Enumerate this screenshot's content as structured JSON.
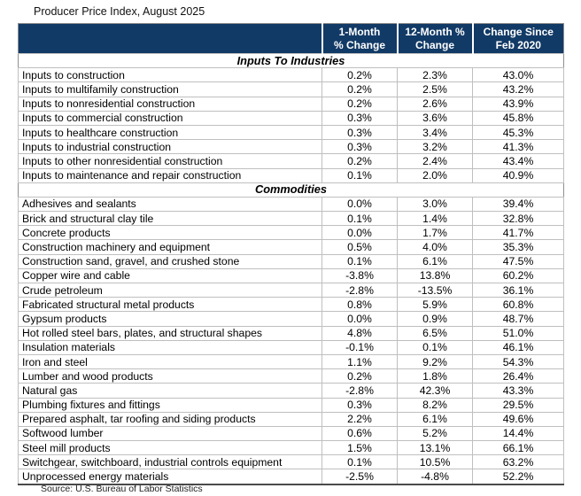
{
  "page": {
    "title": "Producer Price Index, August 2025",
    "source": "Source: U.S. Bureau of Labor Statistics"
  },
  "colors": {
    "header_bg": "#123A66",
    "header_text": "#FFFFFF",
    "grid": "#BFBFBF",
    "outer_border": "#8F8F8F",
    "text": "#000000"
  },
  "table_headers": [
    {
      "l1": "1-Month",
      "l2": "% Change"
    },
    {
      "l1": "12-Month %",
      "l2": "Change"
    },
    {
      "l1": "Change Since",
      "l2": "Feb 2020"
    }
  ],
  "chart_data": {
    "type": "table",
    "title": "Producer Price Index, August 2025",
    "columns": [
      "",
      "1-Month % Change",
      "12-Month % Change",
      "Change Since Feb 2020"
    ],
    "sections": [
      {
        "header": "Inputs To Industries",
        "rows": [
          [
            "Inputs to construction",
            "0.2%",
            "2.3%",
            "43.0%"
          ],
          [
            "Inputs to multifamily construction",
            "0.2%",
            "2.5%",
            "43.2%"
          ],
          [
            "Inputs to nonresidential construction",
            "0.2%",
            "2.6%",
            "43.9%"
          ],
          [
            "Inputs to commercial construction",
            "0.3%",
            "3.6%",
            "45.8%"
          ],
          [
            "Inputs to healthcare construction",
            "0.3%",
            "3.4%",
            "45.3%"
          ],
          [
            "Inputs to industrial construction",
            "0.3%",
            "3.2%",
            "41.3%"
          ],
          [
            "Inputs to other nonresidential construction",
            "0.2%",
            "2.4%",
            "43.4%"
          ],
          [
            "Inputs to maintenance and repair construction",
            "0.1%",
            "2.0%",
            "40.9%"
          ]
        ]
      },
      {
        "header": "Commodities",
        "rows": [
          [
            "Adhesives and sealants",
            "0.0%",
            "3.0%",
            "39.4%"
          ],
          [
            "Brick and structural clay tile",
            "0.1%",
            "1.4%",
            "32.8%"
          ],
          [
            "Concrete products",
            "0.0%",
            "1.7%",
            "41.7%"
          ],
          [
            "Construction machinery and equipment",
            "0.5%",
            "4.0%",
            "35.3%"
          ],
          [
            "Construction sand, gravel, and crushed stone",
            "0.1%",
            "6.1%",
            "47.5%"
          ],
          [
            "Copper wire and cable",
            "-3.8%",
            "13.8%",
            "60.2%"
          ],
          [
            "Crude petroleum",
            "-2.8%",
            "-13.5%",
            "36.1%"
          ],
          [
            "Fabricated structural metal products",
            "0.8%",
            "5.9%",
            "60.8%"
          ],
          [
            "Gypsum products",
            "0.0%",
            "0.9%",
            "48.7%"
          ],
          [
            "Hot rolled steel bars, plates, and structural shapes",
            "4.8%",
            "6.5%",
            "51.0%"
          ],
          [
            "Insulation materials",
            "-0.1%",
            "0.1%",
            "46.1%"
          ],
          [
            "Iron and steel",
            "1.1%",
            "9.2%",
            "54.3%"
          ],
          [
            "Lumber and wood products",
            "0.2%",
            "1.8%",
            "26.4%"
          ],
          [
            "Natural gas",
            "-2.8%",
            "42.3%",
            "43.3%"
          ],
          [
            "Plumbing fixtures and fittings",
            "0.3%",
            "8.2%",
            "29.5%"
          ],
          [
            "Prepared asphalt, tar roofing and siding products",
            "2.2%",
            "6.1%",
            "49.6%"
          ],
          [
            "Softwood lumber",
            "0.6%",
            "5.2%",
            "14.4%"
          ],
          [
            "Steel mill products",
            "1.5%",
            "13.1%",
            "66.1%"
          ],
          [
            "Switchgear, switchboard, industrial controls equipment",
            "0.1%",
            "10.5%",
            "63.2%"
          ],
          [
            "Unprocessed energy materials",
            "-2.5%",
            "-4.8%",
            "52.2%"
          ]
        ]
      }
    ],
    "source": "Source: U.S. Bureau of Labor Statistics"
  }
}
